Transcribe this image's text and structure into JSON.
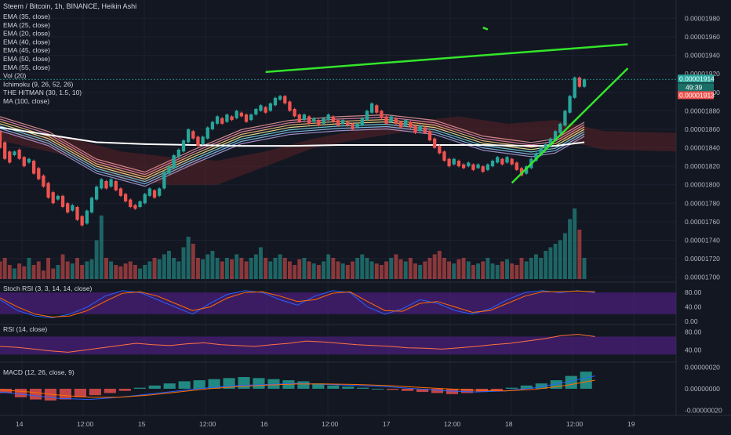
{
  "header": {
    "title": "Steem / Bitcoin, 1h, BINANCE, Heikin Ashi",
    "indicators": [
      "EMA (35, close)",
      "EMA (25, close)",
      "EMA (20, close)",
      "EMA (40, close)",
      "EMA (45, close)",
      "EMA (50, close)",
      "EMA (55, close)",
      "Vol (20)",
      "Ichimoku (9, 26, 52, 26)",
      "THE HITMAN (30, 1.5, 10)",
      "MA (100, close)"
    ]
  },
  "price_axis": {
    "ticks": [
      "0.00001980",
      "0.00001960",
      "0.00001940",
      "0.00001920",
      "0.00001900",
      "0.00001880",
      "0.00001860",
      "0.00001840",
      "0.00001820",
      "0.00001800",
      "0.00001780",
      "0.00001760",
      "0.00001740",
      "0.00001720",
      "0.00001700"
    ],
    "last_price": "0.00001914",
    "countdown": "49:39",
    "ref_price": "0.00001913"
  },
  "time_axis": {
    "labels": [
      "14",
      "12:00",
      "15",
      "12:00",
      "16",
      "12:00",
      "17",
      "12:00",
      "18",
      "12:00",
      "19"
    ]
  },
  "panels": {
    "stoch_rsi": {
      "title": "Stoch RSI (3, 3, 14, 14, close)",
      "ticks": [
        "80.00",
        "40.00",
        "0.00"
      ]
    },
    "rsi": {
      "title": "RSI (14, close)",
      "ticks": [
        "80.00",
        "40.00"
      ]
    },
    "macd": {
      "title": "MACD (12, 26, close, 9)",
      "ticks": [
        "0.00000020",
        "0.00000000",
        "-0.00000020"
      ]
    }
  },
  "colors": {
    "background": "#131722",
    "up": "#26a69a",
    "down": "#ef5350",
    "trendline": "#33e52a",
    "ma100": "#ffffff",
    "cloud_bull": "#1e4d2b",
    "cloud_bear": "#5b2226",
    "osc_band": "#4a1f7a",
    "last_price_tag": "#26a69a",
    "ref_price_tag": "#ef5350"
  },
  "chart_data": {
    "type": "candlestick",
    "price_range": [
      1.698e-05,
      1.988e-05
    ],
    "time_range": [
      0,
      140
    ],
    "candles": [
      {
        "t": 0,
        "o": 1.858e-05,
        "c": 1.84e-05
      },
      {
        "t": 1,
        "o": 1.846e-05,
        "c": 1.828e-05
      },
      {
        "t": 2,
        "o": 1.836e-05,
        "c": 1.824e-05
      },
      {
        "t": 3,
        "o": 1.832e-05,
        "c": 1.836e-05
      },
      {
        "t": 4,
        "o": 1.838e-05,
        "c": 1.828e-05
      },
      {
        "t": 5,
        "o": 1.83e-05,
        "c": 1.82e-05
      },
      {
        "t": 6,
        "o": 1.824e-05,
        "c": 1.828e-05
      },
      {
        "t": 7,
        "o": 1.826e-05,
        "c": 1.812e-05
      },
      {
        "t": 8,
        "o": 1.818e-05,
        "c": 1.806e-05
      },
      {
        "t": 9,
        "o": 1.81e-05,
        "c": 1.798e-05
      },
      {
        "t": 10,
        "o": 1.802e-05,
        "c": 1.786e-05
      },
      {
        "t": 11,
        "o": 1.792e-05,
        "c": 1.78e-05
      },
      {
        "t": 12,
        "o": 1.784e-05,
        "c": 1.788e-05
      },
      {
        "t": 13,
        "o": 1.788e-05,
        "c": 1.776e-05
      },
      {
        "t": 14,
        "o": 1.78e-05,
        "c": 1.77e-05
      },
      {
        "t": 15,
        "o": 1.772e-05,
        "c": 1.778e-05
      },
      {
        "t": 16,
        "o": 1.776e-05,
        "c": 1.762e-05
      },
      {
        "t": 17,
        "o": 1.766e-05,
        "c": 1.756e-05
      },
      {
        "t": 18,
        "o": 1.758e-05,
        "c": 1.772e-05
      },
      {
        "t": 19,
        "o": 1.77e-05,
        "c": 1.786e-05
      },
      {
        "t": 20,
        "o": 1.784e-05,
        "c": 1.798e-05
      },
      {
        "t": 21,
        "o": 1.796e-05,
        "c": 1.806e-05
      },
      {
        "t": 22,
        "o": 1.804e-05,
        "c": 1.796e-05
      },
      {
        "t": 23,
        "o": 1.798e-05,
        "c": 1.806e-05
      },
      {
        "t": 24,
        "o": 1.804e-05,
        "c": 1.794e-05
      },
      {
        "t": 25,
        "o": 1.796e-05,
        "c": 1.788e-05
      },
      {
        "t": 26,
        "o": 1.79e-05,
        "c": 1.782e-05
      },
      {
        "t": 27,
        "o": 1.784e-05,
        "c": 1.776e-05
      },
      {
        "t": 28,
        "o": 1.778e-05,
        "c": 1.774e-05
      },
      {
        "t": 29,
        "o": 1.776e-05,
        "c": 1.782e-05
      },
      {
        "t": 30,
        "o": 1.78e-05,
        "c": 1.79e-05
      },
      {
        "t": 31,
        "o": 1.788e-05,
        "c": 1.796e-05
      },
      {
        "t": 32,
        "o": 1.794e-05,
        "c": 1.786e-05
      },
      {
        "t": 33,
        "o": 1.788e-05,
        "c": 1.796e-05
      },
      {
        "t": 34,
        "o": 1.796e-05,
        "c": 1.814e-05
      },
      {
        "t": 35,
        "o": 1.812e-05,
        "c": 1.82e-05
      },
      {
        "t": 36,
        "o": 1.818e-05,
        "c": 1.832e-05
      },
      {
        "t": 37,
        "o": 1.83e-05,
        "c": 1.838e-05
      },
      {
        "t": 38,
        "o": 1.836e-05,
        "c": 1.848e-05
      },
      {
        "t": 39,
        "o": 1.846e-05,
        "c": 1.86e-05
      },
      {
        "t": 40,
        "o": 1.858e-05,
        "c": 1.85e-05
      },
      {
        "t": 41,
        "o": 1.852e-05,
        "c": 1.842e-05
      },
      {
        "t": 42,
        "o": 1.844e-05,
        "c": 1.852e-05
      },
      {
        "t": 43,
        "o": 1.85e-05,
        "c": 1.862e-05
      },
      {
        "t": 44,
        "o": 1.86e-05,
        "c": 1.868e-05
      },
      {
        "t": 45,
        "o": 1.866e-05,
        "c": 1.874e-05
      },
      {
        "t": 46,
        "o": 1.872e-05,
        "c": 1.866e-05
      },
      {
        "t": 47,
        "o": 1.868e-05,
        "c": 1.876e-05
      },
      {
        "t": 48,
        "o": 1.874e-05,
        "c": 1.87e-05
      },
      {
        "t": 49,
        "o": 1.872e-05,
        "c": 1.88e-05
      },
      {
        "t": 50,
        "o": 1.878e-05,
        "c": 1.874e-05
      },
      {
        "t": 51,
        "o": 1.876e-05,
        "c": 1.868e-05
      },
      {
        "t": 52,
        "o": 1.87e-05,
        "c": 1.876e-05
      },
      {
        "t": 53,
        "o": 1.876e-05,
        "c": 1.882e-05
      },
      {
        "t": 54,
        "o": 1.88e-05,
        "c": 1.886e-05
      },
      {
        "t": 55,
        "o": 1.884e-05,
        "c": 1.878e-05
      },
      {
        "t": 56,
        "o": 1.88e-05,
        "c": 1.888e-05
      },
      {
        "t": 57,
        "o": 1.886e-05,
        "c": 1.894e-05
      },
      {
        "t": 58,
        "o": 1.892e-05,
        "c": 1.896e-05
      },
      {
        "t": 59,
        "o": 1.896e-05,
        "c": 1.888e-05
      },
      {
        "t": 60,
        "o": 1.89e-05,
        "c": 1.88e-05
      },
      {
        "t": 61,
        "o": 1.882e-05,
        "c": 1.874e-05
      },
      {
        "t": 62,
        "o": 1.876e-05,
        "c": 1.868e-05
      },
      {
        "t": 63,
        "o": 1.87e-05,
        "c": 1.876e-05
      },
      {
        "t": 64,
        "o": 1.874e-05,
        "c": 1.866e-05
      },
      {
        "t": 65,
        "o": 1.868e-05,
        "c": 1.872e-05
      },
      {
        "t": 66,
        "o": 1.87e-05,
        "c": 1.864e-05
      },
      {
        "t": 67,
        "o": 1.866e-05,
        "c": 1.872e-05
      },
      {
        "t": 68,
        "o": 1.87e-05,
        "c": 1.876e-05
      },
      {
        "t": 69,
        "o": 1.874e-05,
        "c": 1.868e-05
      },
      {
        "t": 70,
        "o": 1.87e-05,
        "c": 1.864e-05
      },
      {
        "t": 71,
        "o": 1.866e-05,
        "c": 1.87e-05
      },
      {
        "t": 72,
        "o": 1.868e-05,
        "c": 1.864e-05
      },
      {
        "t": 73,
        "o": 1.866e-05,
        "c": 1.86e-05
      },
      {
        "t": 74,
        "o": 1.862e-05,
        "c": 1.866e-05
      },
      {
        "t": 75,
        "o": 1.864e-05,
        "c": 1.872e-05
      },
      {
        "t": 76,
        "o": 1.87e-05,
        "c": 1.88e-05
      },
      {
        "t": 77,
        "o": 1.878e-05,
        "c": 1.888e-05
      },
      {
        "t": 78,
        "o": 1.886e-05,
        "c": 1.878e-05
      },
      {
        "t": 79,
        "o": 1.88e-05,
        "c": 1.872e-05
      },
      {
        "t": 80,
        "o": 1.874e-05,
        "c": 1.866e-05
      },
      {
        "t": 81,
        "o": 1.868e-05,
        "c": 1.874e-05
      },
      {
        "t": 82,
        "o": 1.872e-05,
        "c": 1.866e-05
      },
      {
        "t": 83,
        "o": 1.868e-05,
        "c": 1.862e-05
      },
      {
        "t": 84,
        "o": 1.864e-05,
        "c": 1.87e-05
      },
      {
        "t": 85,
        "o": 1.868e-05,
        "c": 1.862e-05
      },
      {
        "t": 86,
        "o": 1.864e-05,
        "c": 1.856e-05
      },
      {
        "t": 87,
        "o": 1.858e-05,
        "c": 1.864e-05
      },
      {
        "t": 88,
        "o": 1.862e-05,
        "c": 1.856e-05
      },
      {
        "t": 89,
        "o": 1.858e-05,
        "c": 1.848e-05
      },
      {
        "t": 90,
        "o": 1.85e-05,
        "c": 1.84e-05
      },
      {
        "t": 91,
        "o": 1.842e-05,
        "c": 1.834e-05
      },
      {
        "t": 92,
        "o": 1.836e-05,
        "c": 1.826e-05
      },
      {
        "t": 93,
        "o": 1.828e-05,
        "c": 1.82e-05
      },
      {
        "t": 94,
        "o": 1.822e-05,
        "c": 1.828e-05
      },
      {
        "t": 95,
        "o": 1.826e-05,
        "c": 1.82e-05
      },
      {
        "t": 96,
        "o": 1.822e-05,
        "c": 1.818e-05
      },
      {
        "t": 97,
        "o": 1.82e-05,
        "c": 1.824e-05
      },
      {
        "t": 98,
        "o": 1.822e-05,
        "c": 1.816e-05
      },
      {
        "t": 99,
        "o": 1.818e-05,
        "c": 1.822e-05
      },
      {
        "t": 100,
        "o": 1.82e-05,
        "c": 1.814e-05
      },
      {
        "t": 101,
        "o": 1.816e-05,
        "c": 1.822e-05
      },
      {
        "t": 102,
        "o": 1.82e-05,
        "c": 1.826e-05
      },
      {
        "t": 103,
        "o": 1.824e-05,
        "c": 1.83e-05
      },
      {
        "t": 104,
        "o": 1.828e-05,
        "c": 1.822e-05
      },
      {
        "t": 105,
        "o": 1.824e-05,
        "c": 1.83e-05
      },
      {
        "t": 106,
        "o": 1.828e-05,
        "c": 1.822e-05
      },
      {
        "t": 107,
        "o": 1.824e-05,
        "c": 1.816e-05
      },
      {
        "t": 108,
        "o": 1.818e-05,
        "c": 1.81e-05
      },
      {
        "t": 109,
        "o": 1.812e-05,
        "c": 1.82e-05
      },
      {
        "t": 110,
        "o": 1.818e-05,
        "c": 1.828e-05
      },
      {
        "t": 111,
        "o": 1.826e-05,
        "c": 1.834e-05
      },
      {
        "t": 112,
        "o": 1.832e-05,
        "c": 1.84e-05
      },
      {
        "t": 113,
        "o": 1.838e-05,
        "c": 1.844e-05
      },
      {
        "t": 114,
        "o": 1.842e-05,
        "c": 1.85e-05
      },
      {
        "t": 115,
        "o": 1.848e-05,
        "c": 1.858e-05
      },
      {
        "t": 116,
        "o": 1.856e-05,
        "c": 1.866e-05
      },
      {
        "t": 117,
        "o": 1.864e-05,
        "c": 1.88e-05
      },
      {
        "t": 118,
        "o": 1.878e-05,
        "c": 1.896e-05
      },
      {
        "t": 119,
        "o": 1.894e-05,
        "c": 1.916e-05
      },
      {
        "t": 120,
        "o": 1.916e-05,
        "c": 1.906e-05
      },
      {
        "t": 121,
        "o": 1.906e-05,
        "c": 1.914e-05
      }
    ],
    "volume": [
      0.25,
      0.3,
      0.2,
      0.15,
      0.22,
      0.18,
      0.3,
      0.2,
      0.25,
      0.12,
      0.3,
      0.15,
      0.2,
      0.35,
      0.25,
      0.22,
      0.3,
      0.2,
      0.25,
      0.28,
      0.55,
      0.9,
      0.3,
      0.25,
      0.2,
      0.18,
      0.22,
      0.25,
      0.2,
      0.15,
      0.2,
      0.25,
      0.3,
      0.28,
      0.35,
      0.4,
      0.3,
      0.25,
      0.45,
      0.6,
      0.5,
      0.3,
      0.28,
      0.35,
      0.4,
      0.3,
      0.25,
      0.3,
      0.28,
      0.35,
      0.3,
      0.25,
      0.3,
      0.35,
      0.45,
      0.3,
      0.25,
      0.3,
      0.35,
      0.3,
      0.25,
      0.2,
      0.28,
      0.3,
      0.25,
      0.22,
      0.2,
      0.25,
      0.35,
      0.3,
      0.25,
      0.22,
      0.2,
      0.25,
      0.3,
      0.35,
      0.3,
      0.25,
      0.22,
      0.2,
      0.25,
      0.3,
      0.35,
      0.28,
      0.25,
      0.3,
      0.22,
      0.2,
      0.25,
      0.3,
      0.35,
      0.4,
      0.3,
      0.25,
      0.22,
      0.28,
      0.3,
      0.25,
      0.2,
      0.22,
      0.25,
      0.3,
      0.22,
      0.2,
      0.25,
      0.28,
      0.22,
      0.2,
      0.3,
      0.25,
      0.3,
      0.35,
      0.3,
      0.4,
      0.45,
      0.5,
      0.55,
      0.65,
      0.85,
      1.0,
      0.7,
      0.3
    ],
    "ma100": [
      [
        0,
        1.862e-05
      ],
      [
        10,
        1.854e-05
      ],
      [
        20,
        1.846e-05
      ],
      [
        30,
        1.844e-05
      ],
      [
        40,
        1.843e-05
      ],
      [
        50,
        1.842e-05
      ],
      [
        60,
        1.842e-05
      ],
      [
        70,
        1.843e-05
      ],
      [
        80,
        1.843e-05
      ],
      [
        90,
        1.843e-05
      ],
      [
        100,
        1.843e-05
      ],
      [
        110,
        1.842e-05
      ],
      [
        115,
        1.842e-05
      ],
      [
        121,
        1.846e-05
      ]
    ],
    "ema_ribbon": [
      [
        0,
        1.866e-05
      ],
      [
        10,
        1.85e-05
      ],
      [
        20,
        1.82e-05
      ],
      [
        30,
        1.806e-05
      ],
      [
        40,
        1.83e-05
      ],
      [
        50,
        1.852e-05
      ],
      [
        60,
        1.862e-05
      ],
      [
        70,
        1.866e-05
      ],
      [
        80,
        1.868e-05
      ],
      [
        90,
        1.862e-05
      ],
      [
        100,
        1.845e-05
      ],
      [
        110,
        1.838e-05
      ],
      [
        115,
        1.842e-05
      ],
      [
        121,
        1.86e-05
      ]
    ],
    "trendlines": [
      {
        "from": [
          55,
          1.922e-05
        ],
        "to": [
          130,
          1.952e-05
        ]
      },
      {
        "from": [
          106,
          1.802e-05
        ],
        "to": [
          130,
          1.926e-05
        ]
      },
      {
        "from": [
          100,
          1.97e-05
        ],
        "to": [
          101,
          1.968e-05
        ]
      }
    ],
    "cloud": [
      [
        0,
        1.858e-05,
        1.848e-05
      ],
      [
        15,
        1.85e-05,
        1.83e-05
      ],
      [
        25,
        1.836e-05,
        1.806e-05
      ],
      [
        35,
        1.83e-05,
        1.8e-05
      ],
      [
        45,
        1.826e-05,
        1.8e-05
      ],
      [
        55,
        1.836e-05,
        1.82e-05
      ],
      [
        65,
        1.85e-05,
        1.84e-05
      ],
      [
        75,
        1.86e-05,
        1.85e-05
      ],
      [
        85,
        1.868e-05,
        1.858e-05
      ],
      [
        95,
        1.874e-05,
        1.858e-05
      ],
      [
        105,
        1.866e-05,
        1.846e-05
      ],
      [
        115,
        1.87e-05,
        1.85e-05
      ],
      [
        125,
        1.858e-05,
        1.838e-05
      ],
      [
        140,
        1.856e-05,
        1.836e-05
      ]
    ],
    "stoch_k": [
      60,
      30,
      15,
      10,
      20,
      40,
      70,
      85,
      80,
      60,
      40,
      20,
      50,
      75,
      85,
      80,
      60,
      45,
      70,
      85,
      80,
      40,
      20,
      35,
      60,
      50,
      30,
      20,
      35,
      60,
      80,
      85,
      80,
      85,
      80
    ],
    "stoch_d": [
      65,
      40,
      20,
      12,
      15,
      30,
      55,
      78,
      82,
      70,
      50,
      30,
      40,
      65,
      80,
      82,
      70,
      55,
      60,
      78,
      82,
      55,
      30,
      28,
      50,
      55,
      40,
      25,
      30,
      50,
      70,
      82,
      82,
      84,
      82
    ],
    "rsi": [
      48,
      46,
      42,
      38,
      35,
      40,
      45,
      50,
      55,
      52,
      50,
      54,
      56,
      52,
      50,
      48,
      52,
      55,
      60,
      58,
      55,
      52,
      50,
      48,
      45,
      44,
      42,
      45,
      48,
      52,
      55,
      60,
      65,
      72,
      75,
      70
    ],
    "macd_hist": [
      -0.4,
      -0.8,
      -1.0,
      -1.1,
      -1.0,
      -0.8,
      -0.6,
      -0.4,
      -0.2,
      0.1,
      0.3,
      0.5,
      0.7,
      0.8,
      0.9,
      1.0,
      1.1,
      1.0,
      0.9,
      0.8,
      0.7,
      0.5,
      0.3,
      0.2,
      0.1,
      0.0,
      -0.1,
      -0.2,
      -0.3,
      -0.4,
      -0.5,
      -0.4,
      -0.3,
      -0.2,
      0.1,
      0.3,
      0.5,
      0.8,
      1.2,
      1.6
    ],
    "macd_line": [
      -0.3,
      -0.6,
      -0.9,
      -1.0,
      -0.8,
      -0.5,
      -0.2,
      0.1,
      0.3,
      0.4,
      0.5,
      0.4,
      0.3,
      0.2,
      0.0,
      -0.2,
      -0.3,
      -0.2,
      0.1,
      0.6,
      1.2
    ],
    "signal_line": [
      -0.1,
      -0.3,
      -0.6,
      -0.8,
      -0.8,
      -0.6,
      -0.3,
      0.0,
      0.2,
      0.35,
      0.45,
      0.45,
      0.4,
      0.3,
      0.15,
      0.0,
      -0.15,
      -0.2,
      -0.05,
      0.3,
      0.8
    ]
  }
}
